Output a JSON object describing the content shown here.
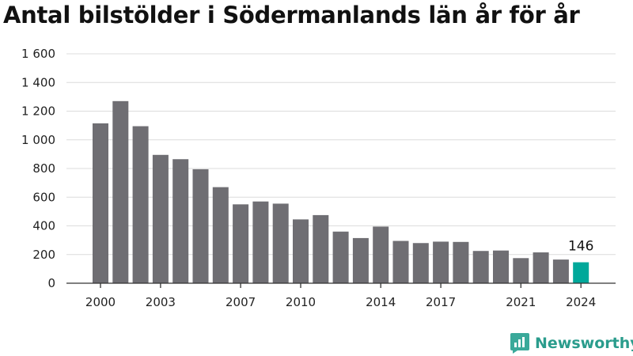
{
  "title": "Antal bilstölder i Södermanlands län år för år",
  "brand": "Newsworthy",
  "colors": {
    "bar": "#6f6e73",
    "highlight": "#00a89a",
    "grid": "#dcdcdc",
    "axis": "#333333",
    "brand": "#2a9c8c"
  },
  "chart_data": {
    "type": "bar",
    "title": "Antal bilstölder i Södermanlands län år för år",
    "xlabel": "",
    "ylabel": "",
    "ylim": [
      0,
      1600
    ],
    "yticks": [
      0,
      200,
      400,
      600,
      800,
      1000,
      1200,
      1400,
      1600
    ],
    "ytick_labels": [
      "0",
      "200",
      "400",
      "600",
      "800",
      "1 000",
      "1 200",
      "1 400",
      "1 600"
    ],
    "xtick_labels": [
      "2000",
      "2003",
      "2007",
      "2010",
      "2014",
      "2017",
      "2021",
      "2024"
    ],
    "categories": [
      "2000",
      "2001",
      "2002",
      "2003",
      "2004",
      "2005",
      "2006",
      "2007",
      "2008",
      "2009",
      "2010",
      "2011",
      "2012",
      "2013",
      "2014",
      "2015",
      "2016",
      "2017",
      "2018",
      "2019",
      "2020",
      "2021",
      "2022",
      "2023",
      "2024"
    ],
    "values": [
      1115,
      1270,
      1095,
      895,
      865,
      795,
      670,
      550,
      570,
      555,
      445,
      475,
      360,
      315,
      395,
      295,
      280,
      290,
      288,
      225,
      228,
      175,
      215,
      165,
      146
    ],
    "highlight_category": "2024",
    "data_labels": [
      {
        "category": "2024",
        "text": "146"
      }
    ],
    "grid": true
  }
}
